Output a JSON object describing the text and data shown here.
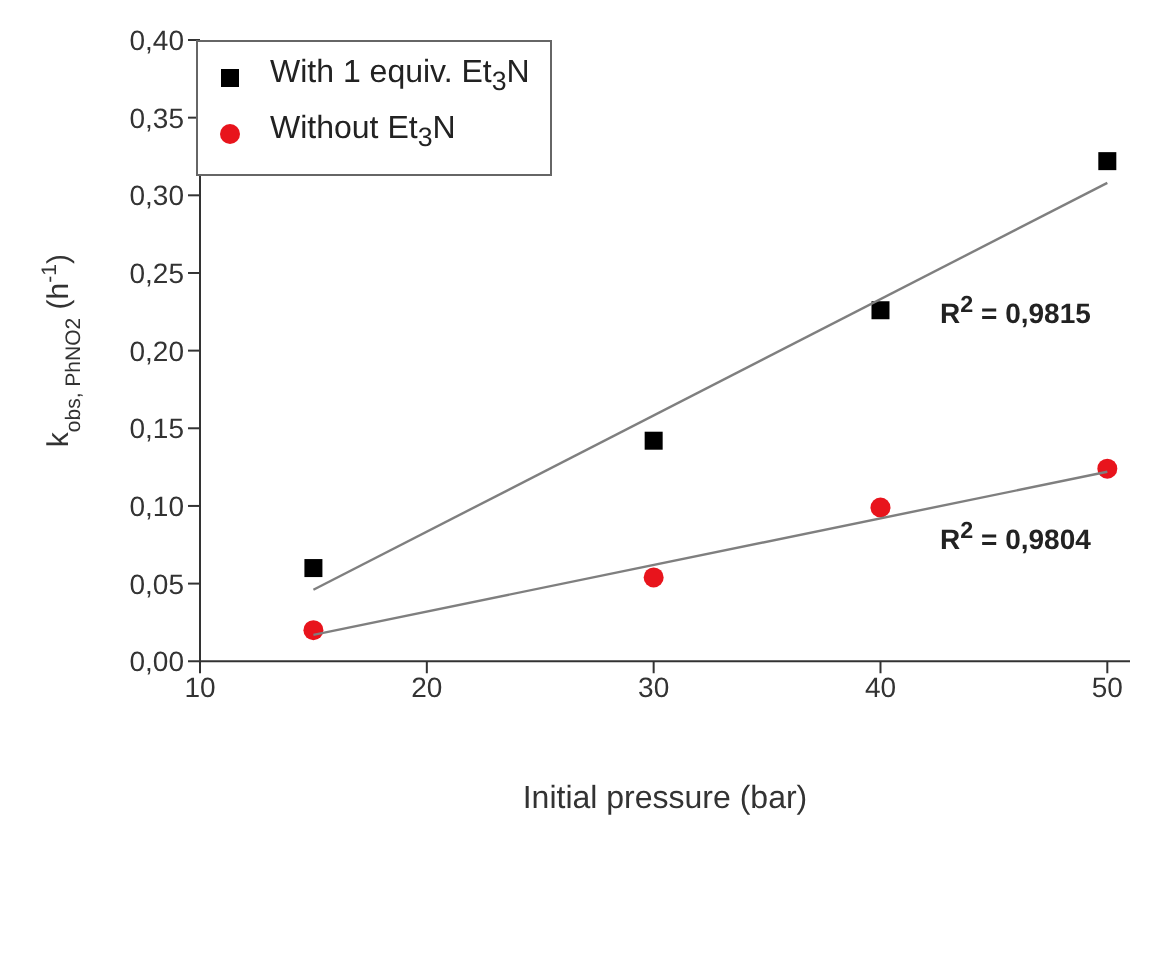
{
  "chart_data": {
    "type": "scatter",
    "xlabel": "Initial pressure (bar)",
    "ylabel": "k$_{obs, PhNO2}$ (h$^{-1}$)",
    "xlim": [
      10,
      51
    ],
    "xticks": [
      10,
      20,
      30,
      40,
      50
    ],
    "ylim": [
      0,
      0.4
    ],
    "yticks": [
      {
        "value": 0,
        "label": "0,00"
      },
      {
        "value": 0.05,
        "label": "0,05"
      },
      {
        "value": 0.1,
        "label": "0,10"
      },
      {
        "value": 0.15,
        "label": "0,15"
      },
      {
        "value": 0.2,
        "label": "0,20"
      },
      {
        "value": 0.25,
        "label": "0,25"
      },
      {
        "value": 0.3,
        "label": "0,30"
      },
      {
        "value": 0.35,
        "label": "0,35"
      },
      {
        "value": 0.4,
        "label": "0,40"
      }
    ],
    "grid": false,
    "legend": "top left",
    "series": [
      {
        "name": "With 1 equiv. Et$_{3}$N",
        "marker": "square",
        "color": "#000000",
        "x": [
          15,
          30,
          40,
          50
        ],
        "values": [
          0.06,
          0.142,
          0.226,
          0.322
        ]
      },
      {
        "name": "Without Et$_{3}$N",
        "marker": "circle",
        "color": "#e8141c",
        "x": [
          15,
          30,
          40,
          50
        ],
        "values": [
          0.02,
          0.054,
          0.099,
          0.124
        ]
      },
      {
        "type": "line",
        "marker": "none",
        "line_style": "solid",
        "color": "#7f7f7f",
        "x": [
          15,
          50
        ],
        "values": [
          0.046,
          0.308
        ]
      },
      {
        "type": "line",
        "marker": "none",
        "line_style": "solid",
        "color": "#7f7f7f",
        "x": [
          15,
          50
        ],
        "values": [
          0.017,
          0.122
        ]
      }
    ],
    "annotations": [
      "R$^{2}$ = 0,9815",
      "R$^{2}$ = 0,9804"
    ]
  }
}
